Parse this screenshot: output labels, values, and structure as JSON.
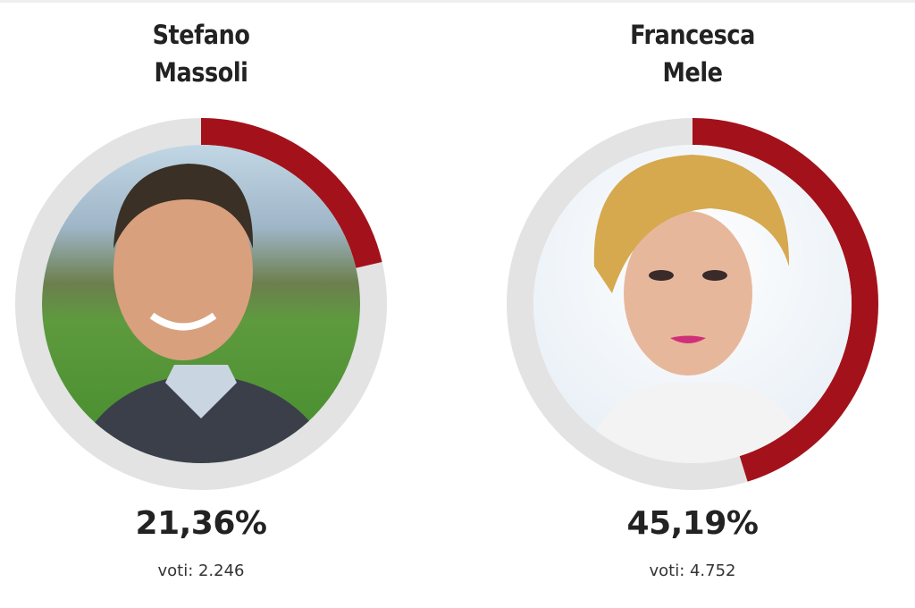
{
  "colors": {
    "accent": "#a3121b",
    "track": "#e3e3e3"
  },
  "candidates": [
    {
      "first_name": "Stefano",
      "last_name": "Massoli",
      "percent_label": "21,36%",
      "percent": 21.36,
      "votes_label": "voti: 2.246",
      "photo": "portrait-man-countryside"
    },
    {
      "first_name": "Francesca",
      "last_name": "Mele",
      "percent_label": "45,19%",
      "percent": 45.19,
      "votes_label": "voti: 4.752",
      "photo": "portrait-woman-white-background"
    }
  ]
}
